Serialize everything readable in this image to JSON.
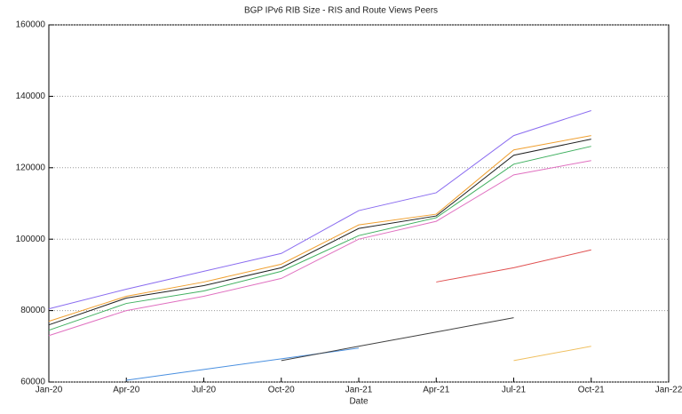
{
  "chart_data": {
    "type": "line",
    "title": "BGP IPv6 RIB Size - RIS and Route Views Peers",
    "x_label": "Date",
    "x": [
      "Jan-20",
      "Apr-20",
      "Jul-20",
      "Oct-20",
      "Jan-21",
      "Apr-21",
      "Jul-21",
      "Oct-21",
      "Jan-22"
    ],
    "xticks": [
      "Jan-20",
      "Apr-20",
      "Jul-20",
      "Oct-20",
      "Jan-21",
      "Apr-21",
      "Jul-21",
      "Oct-21",
      "Jan-22"
    ],
    "ylim": [
      60000,
      160000
    ],
    "yticks": [
      60000,
      80000,
      100000,
      120000,
      140000,
      160000
    ],
    "grid": true,
    "series": [
      {
        "color": "#8a6cf0",
        "values": [
          80500,
          86000,
          91000,
          96000,
          108000,
          113000,
          129000,
          136000,
          null
        ]
      },
      {
        "color": "#f0a030",
        "values": [
          77000,
          84000,
          88000,
          93000,
          104000,
          107000,
          125000,
          129000,
          null
        ]
      },
      {
        "color": "#40b060",
        "values": [
          74500,
          82000,
          85500,
          91000,
          101000,
          106000,
          121000,
          126000,
          null
        ]
      },
      {
        "color": "#202020",
        "values": [
          76000,
          83500,
          87000,
          92000,
          103000,
          106500,
          123500,
          128000,
          null
        ]
      },
      {
        "color": "#e070c0",
        "values": [
          73000,
          80000,
          84000,
          89000,
          100000,
          105000,
          118000,
          122000,
          null
        ]
      },
      {
        "color": "#4a90e0",
        "values": [
          null,
          60500,
          63500,
          66500,
          69500,
          null,
          null,
          null,
          null
        ]
      },
      {
        "color": "#404040",
        "values": [
          null,
          null,
          null,
          66000,
          70000,
          74000,
          78000,
          null,
          null
        ]
      },
      {
        "color": "#e05050",
        "values": [
          null,
          null,
          null,
          null,
          null,
          88000,
          92000,
          97000,
          null
        ]
      },
      {
        "color": "#f0c060",
        "values": [
          null,
          null,
          null,
          null,
          null,
          null,
          66000,
          70000,
          null
        ]
      }
    ]
  }
}
